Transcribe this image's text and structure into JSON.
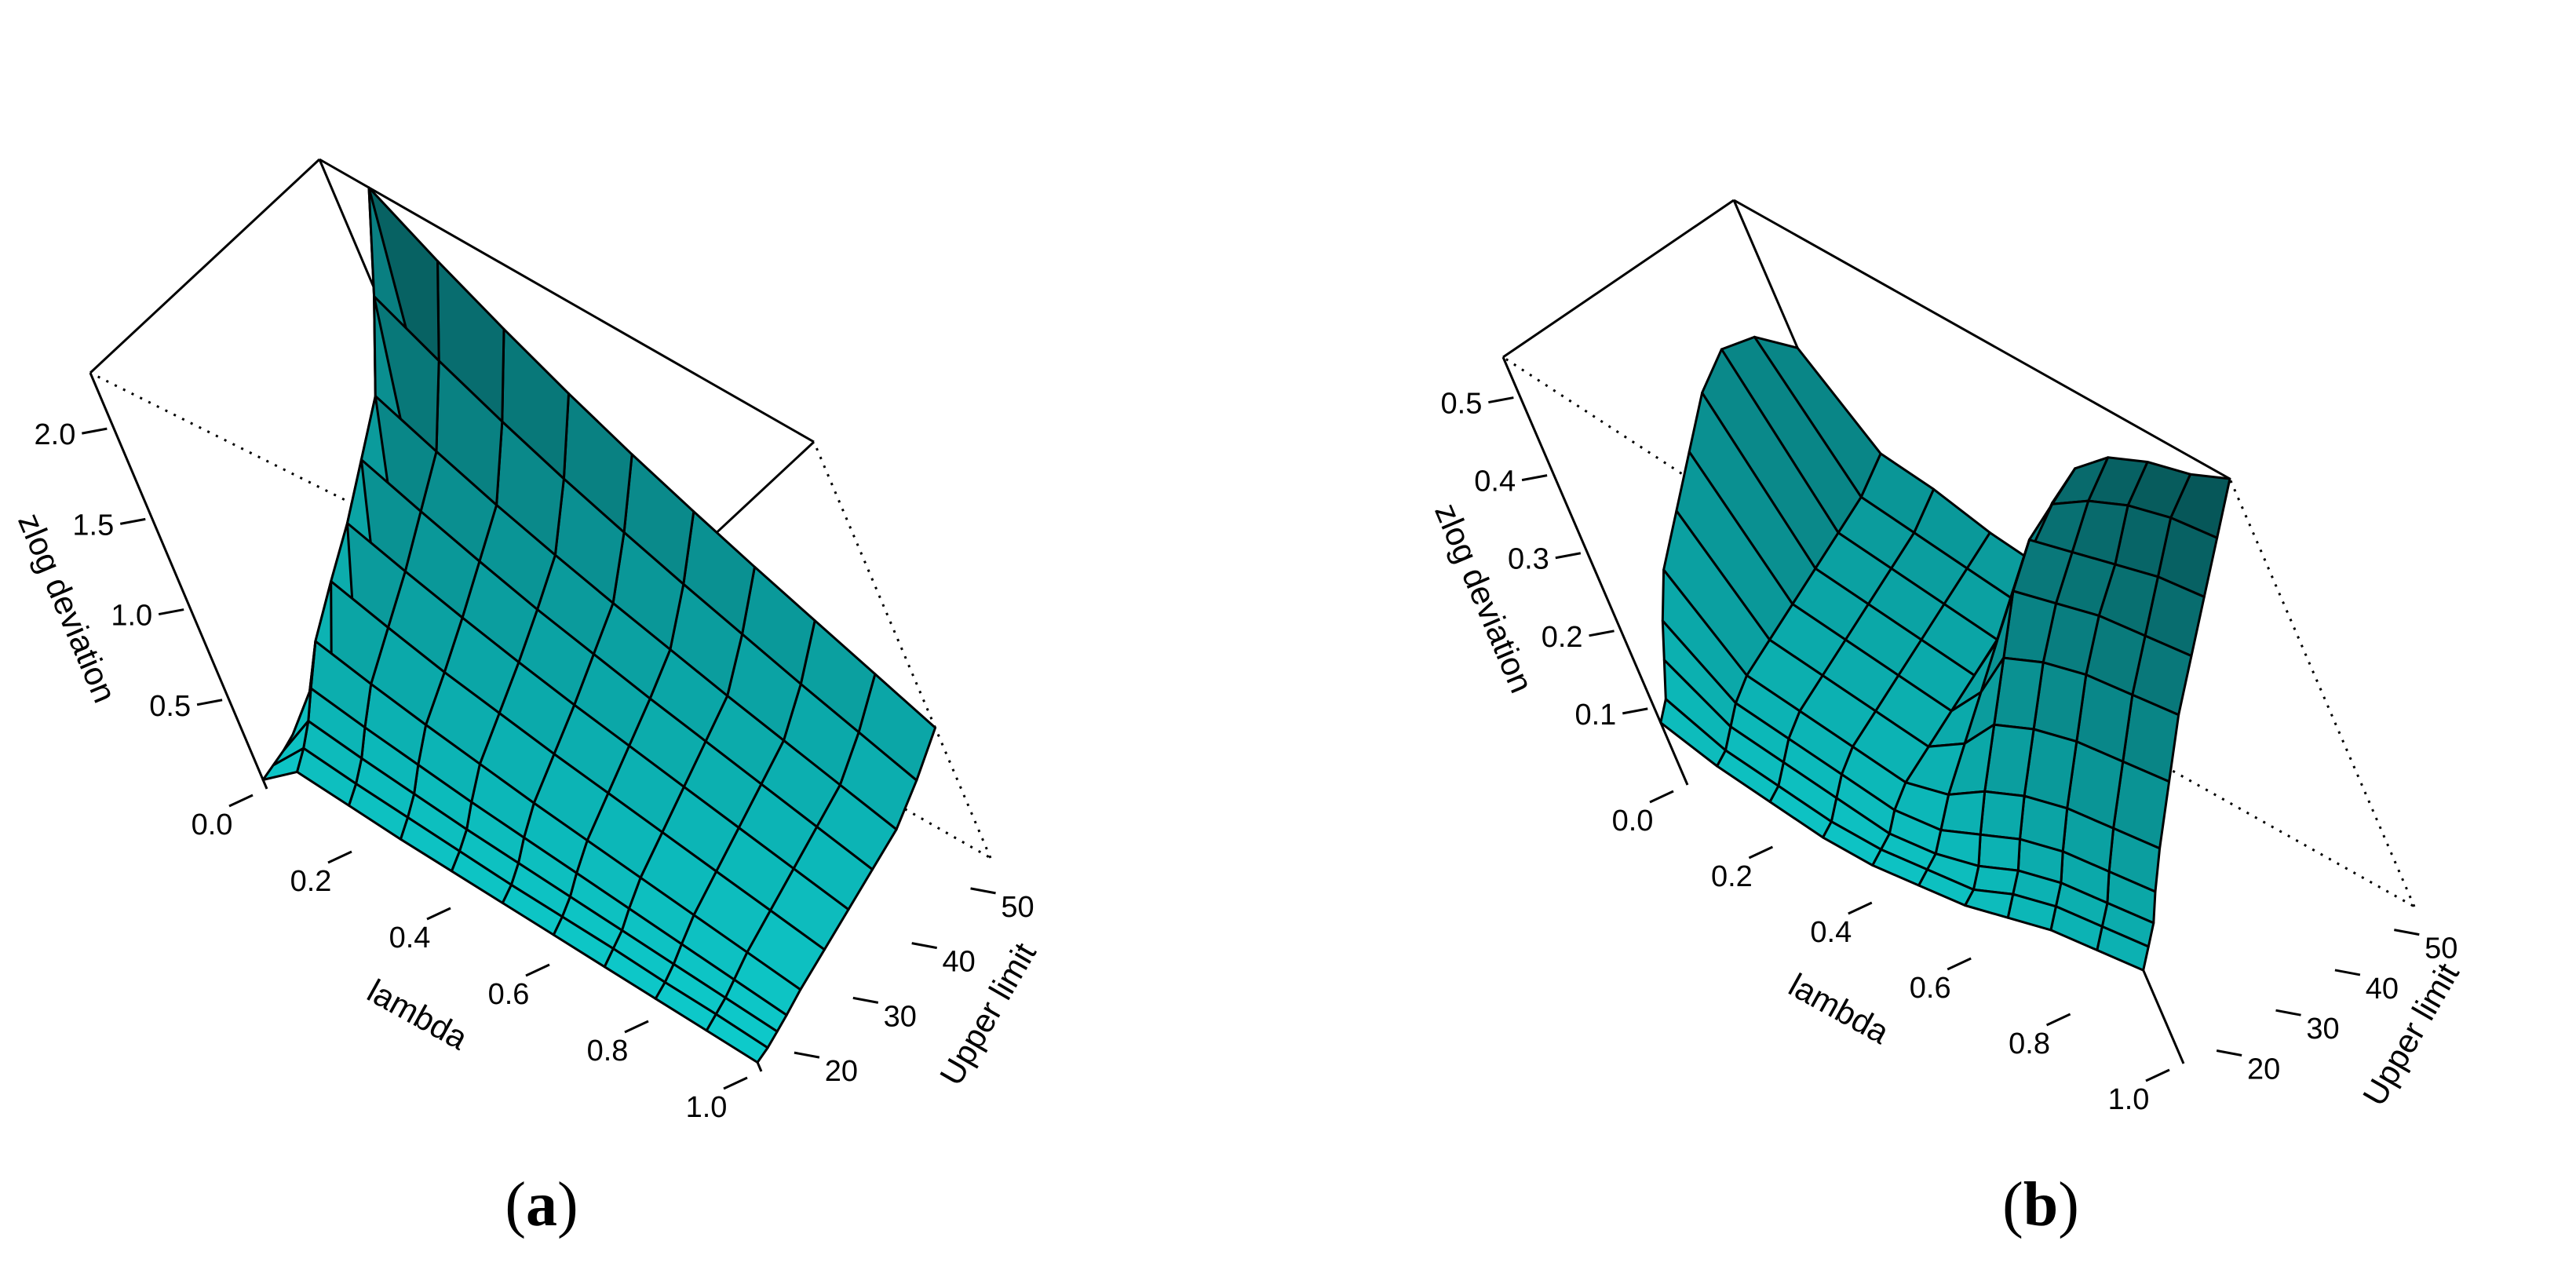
{
  "colors": {
    "low": "#0fe4e4",
    "high": "#064f51",
    "edge": "#000000",
    "background": "#ffffff"
  },
  "captions": {
    "a_open": "(",
    "a_letter": "a",
    "a_close": ")",
    "b_open": "(",
    "b_letter": "b",
    "b_close": ")"
  },
  "chart_data": [
    {
      "panel": "a",
      "type": "surface",
      "title": "",
      "xlabel": "lambda",
      "ylabel": "Upper limit",
      "zlabel": "zlog deviation",
      "x_ticks": [
        "0.0",
        "0.2",
        "0.4",
        "0.6",
        "0.8",
        "1.0"
      ],
      "y_ticks": [
        "20",
        "30",
        "40",
        "50"
      ],
      "z_ticks": [
        "0.5",
        "1.0",
        "1.5",
        "2.0"
      ],
      "xlim": [
        0,
        1
      ],
      "ylim": [
        16,
        55
      ],
      "zlim": [
        0,
        2.3
      ],
      "x": [
        0.0,
        0.1,
        0.2,
        0.3,
        0.4,
        0.5,
        0.6,
        0.7,
        0.8,
        0.9,
        1.0
      ],
      "y": [
        16,
        18,
        20,
        22,
        25,
        30,
        35,
        40,
        45,
        50,
        55
      ],
      "z": [
        [
          0.05,
          0.07,
          0.09,
          0.12,
          0.16,
          0.23,
          0.32,
          0.43,
          0.56,
          0.7,
          0.85
        ],
        [
          0.25,
          0.32,
          0.41,
          0.53,
          0.7,
          0.88,
          1.05,
          1.25,
          1.45,
          1.85,
          2.3
        ],
        [
          0.22,
          0.28,
          0.36,
          0.47,
          0.62,
          0.78,
          0.94,
          1.12,
          1.3,
          1.65,
          2.05
        ],
        [
          0.19,
          0.25,
          0.32,
          0.42,
          0.55,
          0.69,
          0.84,
          1.0,
          1.16,
          1.47,
          1.83
        ],
        [
          0.17,
          0.22,
          0.28,
          0.37,
          0.49,
          0.62,
          0.75,
          0.89,
          1.04,
          1.31,
          1.63
        ],
        [
          0.15,
          0.19,
          0.25,
          0.33,
          0.43,
          0.55,
          0.67,
          0.8,
          0.93,
          1.17,
          1.45
        ],
        [
          0.13,
          0.17,
          0.22,
          0.29,
          0.38,
          0.49,
          0.6,
          0.71,
          0.83,
          1.04,
          1.29
        ],
        [
          0.11,
          0.15,
          0.19,
          0.25,
          0.33,
          0.43,
          0.53,
          0.63,
          0.73,
          0.92,
          1.14
        ],
        [
          0.09,
          0.12,
          0.16,
          0.21,
          0.28,
          0.37,
          0.46,
          0.55,
          0.64,
          0.8,
          1.0
        ],
        [
          0.07,
          0.1,
          0.13,
          0.17,
          0.23,
          0.31,
          0.39,
          0.47,
          0.55,
          0.69,
          0.86
        ],
        [
          0.05,
          0.07,
          0.1,
          0.13,
          0.18,
          0.25,
          0.32,
          0.39,
          0.46,
          0.58,
          0.72
        ]
      ]
    },
    {
      "panel": "b",
      "type": "surface",
      "title": "",
      "xlabel": "lambda",
      "ylabel": "Upper limit",
      "zlabel": "zlog deviation",
      "x_ticks": [
        "0.0",
        "0.2",
        "0.4",
        "0.6",
        "0.8",
        "1.0"
      ],
      "y_ticks": [
        "20",
        "30",
        "40",
        "50"
      ],
      "z_ticks": [
        "0.1",
        "0.2",
        "0.3",
        "0.4",
        "0.5"
      ],
      "xlim": [
        0,
        1
      ],
      "ylim": [
        16,
        55
      ],
      "zlim": [
        0,
        0.55
      ],
      "x": [
        0.0,
        0.1,
        0.2,
        0.3,
        0.4,
        0.5,
        0.6,
        0.7,
        0.8,
        0.9,
        1.0
      ],
      "y": [
        16,
        18,
        20,
        22,
        25,
        30,
        35,
        40,
        45,
        50,
        55
      ],
      "z": [
        [
          0.08,
          0.1,
          0.14,
          0.18,
          0.23,
          0.28,
          0.33,
          0.38,
          0.41,
          0.4,
          0.36
        ],
        [
          0.06,
          0.07,
          0.09,
          0.11,
          0.13,
          0.15,
          0.17,
          0.19,
          0.21,
          0.23,
          0.26
        ],
        [
          0.05,
          0.06,
          0.08,
          0.1,
          0.12,
          0.14,
          0.16,
          0.18,
          0.2,
          0.22,
          0.25
        ],
        [
          0.04,
          0.05,
          0.07,
          0.09,
          0.11,
          0.13,
          0.15,
          0.17,
          0.19,
          0.21,
          0.23
        ],
        [
          0.04,
          0.05,
          0.06,
          0.08,
          0.1,
          0.12,
          0.14,
          0.16,
          0.18,
          0.2,
          0.22
        ],
        [
          0.05,
          0.06,
          0.07,
          0.09,
          0.12,
          0.16,
          0.2,
          0.24,
          0.28,
          0.31,
          0.34
        ],
        [
          0.06,
          0.07,
          0.09,
          0.12,
          0.16,
          0.22,
          0.28,
          0.34,
          0.38,
          0.4,
          0.42
        ],
        [
          0.08,
          0.1,
          0.12,
          0.15,
          0.19,
          0.25,
          0.31,
          0.36,
          0.4,
          0.44,
          0.47
        ],
        [
          0.1,
          0.12,
          0.14,
          0.17,
          0.21,
          0.27,
          0.33,
          0.38,
          0.42,
          0.47,
          0.5
        ],
        [
          0.11,
          0.13,
          0.15,
          0.18,
          0.22,
          0.28,
          0.34,
          0.39,
          0.44,
          0.49,
          0.52
        ],
        [
          0.12,
          0.14,
          0.16,
          0.19,
          0.23,
          0.29,
          0.35,
          0.4,
          0.45,
          0.5,
          0.55
        ]
      ]
    }
  ]
}
